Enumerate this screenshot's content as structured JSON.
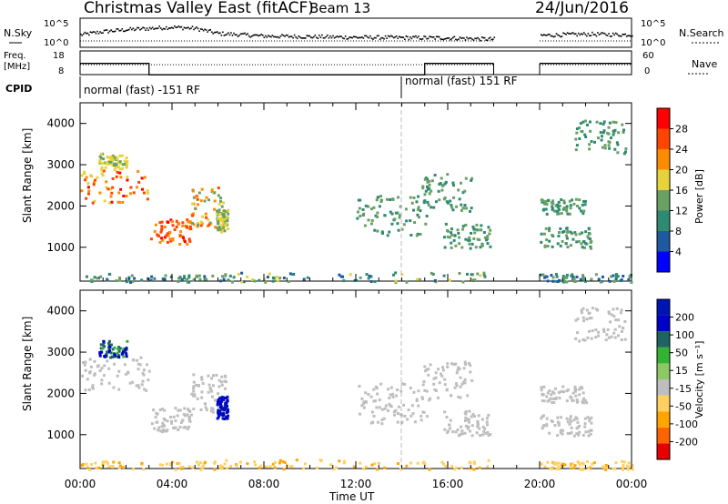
{
  "header": {
    "title": "Christmas Valley East (fitACF)",
    "beam": "Beam 13",
    "date": "24/Jun/2016"
  },
  "side_labels": {
    "nsky": "N.Sky",
    "nsearch": "N.Search",
    "freq": "Freq.",
    "freq_unit": "[MHz]",
    "nave": "Nave",
    "cpid": "CPID"
  },
  "cpid_segments": [
    {
      "label": "normal (fast) -151 RF",
      "start_hour": 0,
      "end_hour": 14
    },
    {
      "label": "normal (fast) 151 RF",
      "start_hour": 14,
      "end_hour": 24
    }
  ],
  "colors": {
    "power": [
      "#0000ff",
      "#1e5aa0",
      "#2f8a72",
      "#6aa063",
      "#e6d23c",
      "#ff8c00",
      "#ff4500",
      "#ff0000"
    ],
    "velocity": [
      "#e60000",
      "#ff6400",
      "#ffa500",
      "#ffd060",
      "#bebebe",
      "#8cc864",
      "#32b432",
      "#1e6464",
      "#0000c8",
      "#0014b4"
    ]
  },
  "chart_data": [
    {
      "type": "line",
      "title": "N.Sky / N.Search",
      "ylabel_left": "N.Sky",
      "ylabel_right": "N.Search",
      "yticks_left": [
        "10^5",
        "10^0"
      ],
      "yticks_right": [
        "10^5",
        "10^0"
      ],
      "gaps": [
        [
          18.0,
          20.0
        ]
      ],
      "sky_levels": [
        [
          0,
          1.5
        ],
        [
          1,
          2.0
        ],
        [
          2,
          2.3
        ],
        [
          3,
          2.5
        ],
        [
          4,
          2.7
        ],
        [
          5,
          2.5
        ],
        [
          6,
          1.7
        ],
        [
          8,
          1.3
        ],
        [
          12,
          1.1
        ],
        [
          16,
          1.0
        ],
        [
          18,
          0.8
        ],
        [
          20,
          1.4
        ],
        [
          22,
          1.6
        ],
        [
          24,
          1.5
        ]
      ]
    },
    {
      "type": "line",
      "title": "Freq. / Nave",
      "ylabel_left": "Freq. [MHz]",
      "ylabel_right": "Nave",
      "yticks_left": [
        "18",
        "8"
      ],
      "yticks_right": [
        "60",
        "0"
      ],
      "freq_mhz": [
        [
          0,
          13.5
        ],
        [
          3.0,
          13.5
        ],
        [
          3.0,
          8.7
        ],
        [
          15.0,
          8.7
        ],
        [
          15.0,
          13.5
        ],
        [
          18.0,
          13.5
        ],
        [
          20.0,
          13.5
        ],
        [
          24,
          13.5
        ]
      ],
      "nave": [
        [
          0,
          25
        ],
        [
          18,
          25
        ],
        [
          20,
          25
        ],
        [
          24,
          25
        ]
      ],
      "gaps": [
        [
          18.0,
          20.0
        ]
      ]
    },
    {
      "type": "heatmap",
      "title": "Power",
      "xlabel": "Time UT",
      "ylabel": "Slant Range [km]",
      "colorbar_label": "Power [dB]",
      "colorbar_ticks": [
        "4",
        "8",
        "12",
        "16",
        "20",
        "24",
        "28"
      ],
      "xlim": [
        0,
        24
      ],
      "ylim": [
        180,
        4500
      ],
      "xticks": [
        "00:00",
        "04:00",
        "08:00",
        "12:00",
        "16:00",
        "20:00",
        "00:00"
      ],
      "yticks": [
        "1000",
        "2000",
        "3000",
        "4000"
      ]
    },
    {
      "type": "heatmap",
      "title": "Velocity",
      "xlabel": "Time UT",
      "ylabel": "Slant Range [km]",
      "colorbar_label": "Velocity [m s⁻¹]",
      "colorbar_ticks": [
        "-200",
        "-100",
        "-50",
        "-15",
        "15",
        "50",
        "100",
        "200"
      ],
      "xlim": [
        0,
        24
      ],
      "ylim": [
        180,
        4500
      ],
      "xticks": [
        "00:00",
        "04:00",
        "08:00",
        "12:00",
        "16:00",
        "20:00",
        "00:00"
      ],
      "yticks": [
        "1000",
        "2000",
        "3000",
        "4000"
      ],
      "xlabel_shown": "Time UT"
    }
  ],
  "scatter_regions": [
    {
      "name": "morning-band",
      "t0": 0.0,
      "t1": 3.0,
      "r0": 2100,
      "r1": 2900,
      "power": [
        16,
        30
      ],
      "vel": [
        -15,
        15
      ]
    },
    {
      "name": "dip-band",
      "t0": 3.0,
      "t1": 4.8,
      "r0": 1100,
      "r1": 1700,
      "power": [
        20,
        30
      ],
      "vel": [
        -15,
        15
      ]
    },
    {
      "name": "rise-band",
      "t0": 4.8,
      "t1": 6.3,
      "r0": 1500,
      "r1": 2500,
      "power": [
        12,
        26
      ],
      "vel": [
        -15,
        15
      ]
    },
    {
      "name": "blue-velocity",
      "t0": 5.9,
      "t1": 6.4,
      "r0": 1400,
      "r1": 1950,
      "power": [
        12,
        20
      ],
      "vel": [
        150,
        230
      ]
    },
    {
      "name": "near-range",
      "t0": 6.3,
      "t1": 18.0,
      "r0": 180,
      "r1": 420,
      "power": [
        4,
        20
      ],
      "vel": [
        -60,
        -15
      ]
    },
    {
      "name": "near-range-early",
      "t0": 0.0,
      "t1": 6.3,
      "r0": 180,
      "r1": 380,
      "power": [
        4,
        16
      ],
      "vel": [
        -60,
        -15
      ]
    },
    {
      "name": "near-range-late",
      "t0": 20.0,
      "t1": 24.0,
      "r0": 180,
      "r1": 380,
      "power": [
        4,
        16
      ],
      "vel": [
        -60,
        -15
      ]
    },
    {
      "name": "evening-streak-1",
      "t0": 12.0,
      "t1": 15.2,
      "r0": 1300,
      "r1": 2300,
      "power": [
        8,
        16
      ],
      "vel": [
        -15,
        15
      ]
    },
    {
      "name": "evening-streak-2",
      "t0": 14.8,
      "t1": 17.0,
      "r0": 1900,
      "r1": 2800,
      "power": [
        8,
        16
      ],
      "vel": [
        -15,
        15
      ]
    },
    {
      "name": "evening-streak-3",
      "t0": 15.8,
      "t1": 17.8,
      "r0": 1000,
      "r1": 1600,
      "power": [
        8,
        16
      ],
      "vel": [
        -15,
        15
      ]
    },
    {
      "name": "night-streak-1",
      "t0": 20.0,
      "t1": 22.2,
      "r0": 1000,
      "r1": 1500,
      "power": [
        8,
        16
      ],
      "vel": [
        -15,
        15
      ]
    },
    {
      "name": "night-streak-2",
      "t0": 20.0,
      "t1": 22.0,
      "r0": 1800,
      "r1": 2200,
      "power": [
        8,
        14
      ],
      "vel": [
        -15,
        15
      ]
    },
    {
      "name": "night-high",
      "t0": 21.5,
      "t1": 23.7,
      "r0": 3300,
      "r1": 4100,
      "power": [
        8,
        14
      ],
      "vel": [
        -15,
        15
      ]
    },
    {
      "name": "early-high",
      "t0": 0.8,
      "t1": 2.0,
      "r0": 2900,
      "r1": 3300,
      "power": [
        14,
        20
      ],
      "vel": [
        80,
        200
      ]
    }
  ]
}
